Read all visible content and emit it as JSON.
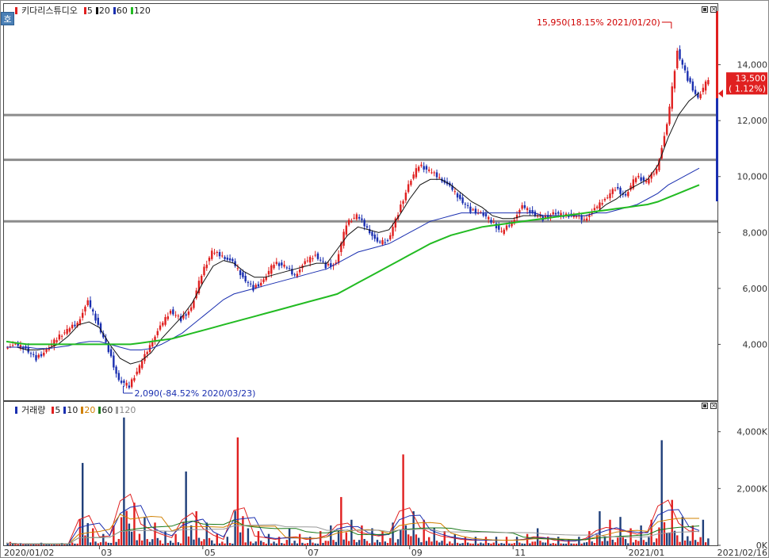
{
  "price_panel": {
    "title": "키다리스튜디오",
    "ma_items": [
      {
        "label": "5",
        "color": "#e02020"
      },
      {
        "label": "20",
        "color": "#111111"
      },
      {
        "label": "60",
        "color": "#1a2fb0"
      },
      {
        "label": "120",
        "color": "#22bb22"
      }
    ],
    "badge": "호",
    "high_annotation": "15,950(18.15% 2021/01/20)",
    "low_annotation": "2,090(-84.52% 2020/03/23)",
    "current_price": "13,500",
    "current_change": "(  1.12%)"
  },
  "volume_panel": {
    "title": "거래량",
    "ma_items": [
      {
        "label": "5",
        "color": "#e02020"
      },
      {
        "label": "10",
        "color": "#1a2fb0"
      },
      {
        "label": "20",
        "color": "#d08000"
      },
      {
        "label": "60",
        "color": "#1a7a1a"
      },
      {
        "label": "120",
        "color": "#999999"
      }
    ]
  },
  "x_axis": {
    "first_date": "2020/01/02",
    "last_date": "2021/02/16",
    "month_labels": [
      "03",
      "05",
      "07",
      "09",
      "11",
      "2021/01"
    ]
  },
  "chart_data": [
    {
      "type": "candlestick",
      "title": "키다리스튜디오",
      "x_range": [
        "2020/01/02",
        "2021/02/16"
      ],
      "y_ticks": [
        "4,000",
        "6,000",
        "8,000",
        "10,000",
        "12,000",
        "14,000"
      ],
      "ylim": [
        2000,
        16200
      ],
      "horizontal_lines": [
        8400,
        10600,
        12200
      ],
      "series": [
        {
          "name": "close",
          "values": [
            3950,
            3850,
            3500,
            3800,
            4200,
            4500,
            4800,
            5500,
            4700,
            3800,
            2700,
            2500,
            3200,
            4000,
            4600,
            5200,
            4900,
            5300,
            6500,
            7300,
            7200,
            6900,
            6400,
            6000,
            6300,
            6900,
            6800,
            6500,
            6900,
            7200,
            6800,
            6900,
            8300,
            8600,
            8200,
            7600,
            7700,
            8700,
            9700,
            10400,
            10200,
            10000,
            9600,
            9200,
            8800,
            8700,
            8400,
            8000,
            8400,
            8900,
            8700,
            8500,
            8700,
            8600,
            8600,
            8500,
            8800,
            9200,
            9600,
            9300,
            10000,
            9800,
            10300,
            11800,
            14500,
            13500,
            12800,
            13500
          ]
        },
        {
          "name": "5",
          "values": [
            3950,
            3900,
            3700,
            3750,
            4000,
            4400,
            4700,
            5200,
            5000,
            4200,
            3200,
            2700,
            3000,
            3600,
            4300,
            4900,
            5000,
            5200,
            6100,
            6900,
            7200,
            7000,
            6600,
            6200,
            6200,
            6600,
            6800,
            6600,
            6800,
            7000,
            6900,
            6900,
            7900,
            8400,
            8300,
            7900,
            7800,
            8400,
            9300,
            10000,
            10200,
            10000,
            9700,
            9300,
            9000,
            8800,
            8500,
            8200,
            8300,
            8700,
            8700,
            8600,
            8600,
            8600,
            8600,
            8600,
            8700,
            9000,
            9400,
            9400,
            9800,
            9800,
            10100,
            11300,
            13500,
            13700,
            13100,
            13300
          ]
        },
        {
          "name": "20",
          "values": [
            3900,
            3900,
            3800,
            3800,
            3850,
            4000,
            4300,
            4700,
            4800,
            4600,
            4000,
            3500,
            3300,
            3400,
            3700,
            4200,
            4600,
            5000,
            5500,
            6200,
            6800,
            7000,
            6900,
            6600,
            6400,
            6400,
            6500,
            6600,
            6700,
            6800,
            6900,
            6900,
            7400,
            7900,
            8200,
            8100,
            8000,
            8100,
            8600,
            9200,
            9700,
            9900,
            9900,
            9700,
            9400,
            9100,
            8900,
            8600,
            8500,
            8500,
            8600,
            8600,
            8600,
            8600,
            8600,
            8600,
            8600,
            8700,
            9000,
            9200,
            9500,
            9700,
            9900,
            10400,
            11400,
            12200,
            12700,
            13000
          ]
        },
        {
          "name": "60",
          "values": [
            3900,
            3900,
            3900,
            3850,
            3850,
            3900,
            3950,
            4050,
            4100,
            4100,
            4000,
            3900,
            3800,
            3800,
            3850,
            4000,
            4200,
            4400,
            4700,
            5000,
            5300,
            5600,
            5800,
            5900,
            6000,
            6100,
            6200,
            6300,
            6400,
            6500,
            6600,
            6700,
            6900,
            7100,
            7300,
            7400,
            7500,
            7600,
            7800,
            8000,
            8200,
            8400,
            8500,
            8600,
            8700,
            8700,
            8700,
            8700,
            8700,
            8700,
            8700,
            8700,
            8600,
            8600,
            8600,
            8600,
            8600,
            8700,
            8700,
            8800,
            8900,
            9000,
            9200,
            9400,
            9700,
            9900,
            10100,
            10300
          ]
        },
        {
          "name": "120",
          "values": [
            4100,
            4050,
            4000,
            4000,
            4000,
            4000,
            4000,
            4000,
            4000,
            4000,
            4000,
            4000,
            4000,
            4050,
            4100,
            4150,
            4200,
            4300,
            4400,
            4500,
            4600,
            4700,
            4800,
            4900,
            5000,
            5100,
            5200,
            5300,
            5400,
            5500,
            5600,
            5700,
            5800,
            6000,
            6200,
            6400,
            6600,
            6800,
            7000,
            7200,
            7400,
            7600,
            7750,
            7900,
            8000,
            8100,
            8200,
            8250,
            8300,
            8350,
            8400,
            8450,
            8500,
            8550,
            8600,
            8650,
            8700,
            8750,
            8800,
            8850,
            8900,
            8950,
            9000,
            9100,
            9250,
            9400,
            9550,
            9700
          ]
        }
      ]
    },
    {
      "type": "bar",
      "title": "거래량",
      "x_range": [
        "2020/01/02",
        "2021/02/16"
      ],
      "y_ticks": [
        "0K",
        "2,000K",
        "4,000K"
      ],
      "ylim": [
        0,
        4800
      ],
      "series": [
        {
          "name": "volume",
          "values": [
            120,
            80,
            60,
            90,
            60,
            80,
            100,
            2900,
            600,
            400,
            700,
            4500,
            1500,
            1000,
            800,
            500,
            400,
            2600,
            1200,
            800,
            400,
            300,
            3800,
            600,
            500,
            400,
            300,
            600,
            400,
            300,
            500,
            700,
            1700,
            900,
            700,
            600,
            500,
            800,
            3200,
            1200,
            900,
            600,
            500,
            400,
            300,
            300,
            300,
            300,
            300,
            300,
            400,
            600,
            300,
            300,
            200,
            300,
            500,
            1200,
            900,
            1000,
            600,
            700,
            900,
            3700,
            1600,
            1000,
            700,
            900
          ]
        }
      ]
    }
  ]
}
